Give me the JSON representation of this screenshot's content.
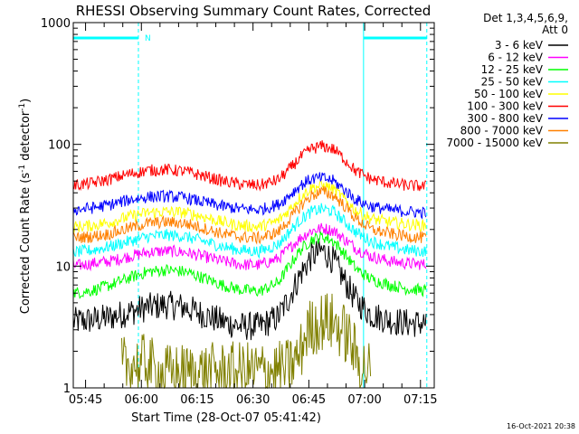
{
  "chart_data": {
    "type": "line",
    "title": "RHESSI Observing Summary Count Rates, Corrected",
    "xlabel": "Start Time (28-Oct-07 05:41:42)",
    "ylabel_main": "Corrected Count Rate (s",
    "ylabel_exp1": "-1",
    "ylabel_mid": " detector",
    "ylabel_exp2": "-1",
    "ylabel_end": ")",
    "yscale": "log",
    "ylim": [
      1,
      1000
    ],
    "xlim_minutes": [
      0,
      97
    ],
    "ytick_labels": [
      "1",
      "10",
      "100",
      "1000"
    ],
    "x_ticks": [
      {
        "label": "05:45",
        "min": 3.3
      },
      {
        "label": "06:00",
        "min": 18.3
      },
      {
        "label": "06:15",
        "min": 33.3
      },
      {
        "label": "06:30",
        "min": 48.3
      },
      {
        "label": "06:45",
        "min": 63.3
      },
      {
        "label": "07:00",
        "min": 78.3
      },
      {
        "label": "07:15",
        "min": 93.3
      }
    ],
    "legend_header": [
      "Det 1,3,4,5,6,9,",
      "Att 0"
    ],
    "night_marker_label": "N",
    "night_bars": [
      {
        "start": 0,
        "end": 17.5
      },
      {
        "start": 78,
        "end": 95
      }
    ],
    "dashed_lines": [
      17.5,
      95
    ],
    "solid_lines": [
      0,
      78
    ],
    "series": [
      {
        "name": "3 - 6 keV",
        "color": "#000000",
        "x": [
          0,
          5,
          10,
          15,
          20,
          25,
          30,
          35,
          40,
          45,
          50,
          55,
          58,
          61,
          64,
          67,
          70,
          73,
          76,
          80,
          85,
          90,
          95
        ],
        "y": [
          3.5,
          3.6,
          3.8,
          4.2,
          4.6,
          4.8,
          4.6,
          4.0,
          3.5,
          3.2,
          3.2,
          3.8,
          5.5,
          8.5,
          12,
          13.5,
          11,
          7.5,
          5.2,
          4.0,
          3.6,
          3.4,
          3.4
        ]
      },
      {
        "name": "6 - 12 keV",
        "color": "#ff00ff",
        "x": [
          0,
          5,
          10,
          15,
          20,
          25,
          30,
          35,
          40,
          45,
          50,
          55,
          58,
          61,
          64,
          67,
          70,
          73,
          76,
          80,
          85,
          90,
          95
        ],
        "y": [
          10,
          10.5,
          11,
          12,
          13,
          13.3,
          13,
          12,
          11,
          10.3,
          10.2,
          11.5,
          14,
          17,
          19.5,
          20.5,
          19.5,
          16.5,
          14,
          12,
          11,
          10.5,
          10.3
        ]
      },
      {
        "name": "12 - 25 keV",
        "color": "#00ff00",
        "x": [
          0,
          5,
          10,
          15,
          20,
          25,
          30,
          35,
          40,
          45,
          50,
          55,
          58,
          61,
          64,
          67,
          70,
          73,
          76,
          80,
          85,
          90,
          95
        ],
        "y": [
          6,
          6.3,
          7,
          8,
          9,
          9.3,
          9,
          8,
          7,
          6.4,
          6.2,
          7.3,
          10,
          13.5,
          16.5,
          17.5,
          16,
          12.5,
          9.5,
          7.8,
          7,
          6.5,
          6.3
        ]
      },
      {
        "name": "25 - 50 keV",
        "color": "#00ffff",
        "x": [
          0,
          5,
          10,
          15,
          20,
          25,
          30,
          35,
          40,
          45,
          50,
          55,
          58,
          61,
          64,
          67,
          70,
          73,
          76,
          80,
          85,
          90,
          95
        ],
        "y": [
          13,
          13.5,
          14.5,
          16,
          17.5,
          18,
          17.5,
          16,
          14.5,
          13.5,
          13.2,
          15,
          19,
          24,
          28,
          29.5,
          28,
          23,
          19,
          16,
          14.5,
          13.5,
          13.2
        ]
      },
      {
        "name": "50 - 100 keV",
        "color": "#ffff00",
        "x": [
          0,
          5,
          10,
          15,
          20,
          25,
          30,
          35,
          40,
          45,
          50,
          55,
          58,
          61,
          64,
          67,
          70,
          73,
          76,
          80,
          85,
          90,
          95
        ],
        "y": [
          21,
          21.5,
          23,
          25.5,
          27.5,
          28,
          27.5,
          25.5,
          23,
          21.5,
          21,
          23.5,
          29,
          37,
          44,
          46,
          43,
          35,
          28.5,
          24.5,
          23,
          22,
          21.5
        ]
      },
      {
        "name": "100 - 300 keV",
        "color": "#ff0000",
        "x": [
          0,
          5,
          10,
          15,
          20,
          25,
          30,
          35,
          40,
          45,
          50,
          55,
          58,
          61,
          64,
          67,
          70,
          73,
          76,
          80,
          85,
          90,
          95
        ],
        "y": [
          46,
          48,
          52,
          57,
          61,
          62,
          60,
          55,
          50,
          47,
          46,
          51,
          62,
          78,
          92,
          97,
          91,
          75,
          60,
          52,
          48,
          46,
          45
        ]
      },
      {
        "name": "300 - 800 keV",
        "color": "#0000ff",
        "x": [
          0,
          5,
          10,
          15,
          20,
          25,
          30,
          35,
          40,
          45,
          50,
          55,
          58,
          61,
          64,
          67,
          70,
          73,
          76,
          80,
          85,
          90,
          95
        ],
        "y": [
          29,
          30,
          32,
          35,
          37,
          37.5,
          36.5,
          33.5,
          31,
          29.5,
          29,
          32,
          38,
          46,
          52,
          53,
          50,
          42,
          35,
          31,
          29,
          28,
          27.5
        ]
      },
      {
        "name": "800 - 7000 keV",
        "color": "#ff8000",
        "x": [
          0,
          5,
          10,
          15,
          20,
          25,
          30,
          35,
          40,
          45,
          50,
          55,
          58,
          61,
          64,
          67,
          70,
          73,
          76,
          80,
          85,
          90,
          95
        ],
        "y": [
          17,
          17.5,
          18.5,
          20.5,
          22.5,
          23,
          22.5,
          20.5,
          18.5,
          17.3,
          17,
          19,
          24,
          31,
          38,
          41,
          38,
          31,
          24.5,
          20,
          18.5,
          17.5,
          17
        ]
      },
      {
        "name": "7000 - 15000 keV",
        "color": "#808000",
        "x": [
          13,
          17,
          18,
          19,
          21,
          22,
          57,
          60,
          61,
          62,
          63,
          66,
          68,
          70,
          72,
          74,
          76,
          78,
          80
        ],
        "y": [
          1.5,
          1.6,
          1.4,
          1.7,
          1.5,
          1.3,
          1.4,
          1.7,
          1.9,
          2.5,
          3,
          3.4,
          3.6,
          3.4,
          3,
          2.6,
          1.8,
          1.5,
          1.4
        ]
      }
    ]
  },
  "footer": {
    "timestamp": "16-Oct-2021 20:38"
  },
  "colors": {
    "axis": "#000000",
    "night_bar": "#00ffff",
    "background": "#ffffff"
  }
}
